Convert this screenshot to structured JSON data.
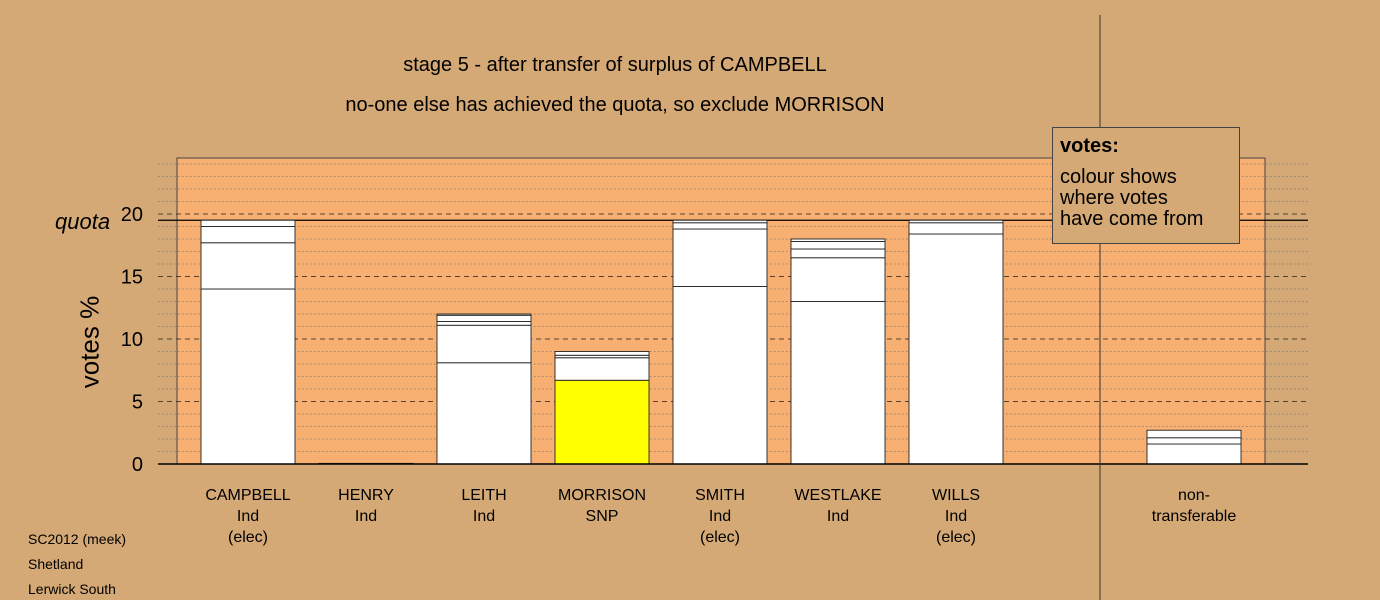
{
  "title_line1": "stage 5 - after transfer of surplus of CAMPBELL",
  "title_line2": "no-one else has achieved the quota, so exclude MORRISON",
  "chart_data": {
    "type": "bar",
    "stacked": true,
    "ylabel": "votes %",
    "ylim": [
      0,
      25
    ],
    "yticks": [
      0,
      5,
      10,
      15,
      20
    ],
    "quota": 19.5,
    "quota_label": "quota",
    "categories": [
      "CAMPBELL",
      "HENRY",
      "LEITH",
      "MORRISON",
      "SMITH",
      "WESTLAKE",
      "WILLS",
      "non-transferable"
    ],
    "category_lines": [
      [
        "CAMPBELL",
        "Ind",
        "(elec)"
      ],
      [
        "HENRY",
        "Ind"
      ],
      [
        "LEITH",
        "Ind"
      ],
      [
        "MORRISON",
        "SNP"
      ],
      [
        "SMITH",
        "Ind",
        "(elec)"
      ],
      [
        "WESTLAKE",
        "Ind"
      ],
      [
        "WILLS",
        "Ind",
        "(elec)"
      ],
      [
        "non-",
        "transferable"
      ]
    ],
    "segments": [
      [
        {
          "v": 14.0,
          "color": "#ffffff"
        },
        {
          "v": 3.7,
          "color": "#ffffff"
        },
        {
          "v": 1.3,
          "color": "#ffffff"
        },
        {
          "v": 0.5,
          "color": "#ffffff"
        }
      ],
      [
        {
          "v": 0.05,
          "color": "#ffffff"
        }
      ],
      [
        {
          "v": 8.1,
          "color": "#ffffff"
        },
        {
          "v": 3.0,
          "color": "#ffffff"
        },
        {
          "v": 0.3,
          "color": "#ffffff"
        },
        {
          "v": 0.5,
          "color": "#ffffff"
        },
        {
          "v": 0.1,
          "color": "#ffffff"
        }
      ],
      [
        {
          "v": 6.7,
          "color": "#ffff00"
        },
        {
          "v": 1.8,
          "color": "#ffffff"
        },
        {
          "v": 0.2,
          "color": "#ffffff"
        },
        {
          "v": 0.3,
          "color": "#ffffff"
        }
      ],
      [
        {
          "v": 14.2,
          "color": "#ffffff"
        },
        {
          "v": 4.6,
          "color": "#ffffff"
        },
        {
          "v": 0.5,
          "color": "#ffffff"
        },
        {
          "v": 0.2,
          "color": "#ffffff"
        }
      ],
      [
        {
          "v": 13.0,
          "color": "#ffffff"
        },
        {
          "v": 3.5,
          "color": "#ffffff"
        },
        {
          "v": 0.7,
          "color": "#ffffff"
        },
        {
          "v": 0.6,
          "color": "#ffffff"
        },
        {
          "v": 0.2,
          "color": "#ffffff"
        }
      ],
      [
        {
          "v": 18.4,
          "color": "#ffffff"
        },
        {
          "v": 0.9,
          "color": "#ffffff"
        },
        {
          "v": 0.2,
          "color": "#ffffff"
        }
      ],
      [
        {
          "v": 1.6,
          "color": "#ffffff"
        },
        {
          "v": 0.5,
          "color": "#ffffff"
        },
        {
          "v": 0.6,
          "color": "#ffffff"
        }
      ]
    ],
    "grid": true
  },
  "legend": {
    "heading": "votes:",
    "text_lines": [
      "colour shows",
      "where votes",
      "have come from"
    ]
  },
  "footer": [
    "SC2012 (meek)",
    "Shetland",
    "Lerwick South"
  ],
  "colors": {
    "background": "#d4a976",
    "plot_area": "#f7b071",
    "axis": "#000000"
  }
}
